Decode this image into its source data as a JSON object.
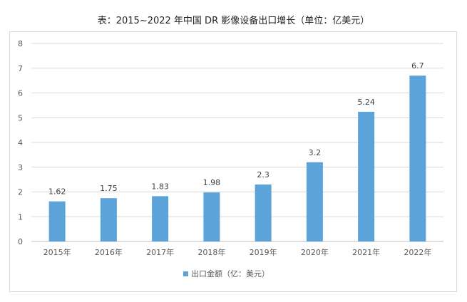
{
  "chart_data": {
    "type": "bar",
    "title": "表：2015~2022 年中国 DR 影像设备出口增长（单位：亿美元）",
    "categories": [
      "2015年",
      "2016年",
      "2017年",
      "2018年",
      "2019年",
      "2020年",
      "2021年",
      "2022年"
    ],
    "series": [
      {
        "name": "出口金额（亿：美元）",
        "values": [
          1.62,
          1.75,
          1.83,
          1.98,
          2.3,
          3.2,
          5.24,
          6.7
        ],
        "labels": [
          "1.62",
          "1.75",
          "1.83",
          "1.98",
          "2.3",
          "3.2",
          "5.24",
          "6.7"
        ],
        "color": "#5ba3d9"
      }
    ],
    "ylim": [
      0,
      8
    ],
    "yticks": [
      "0",
      "1",
      "2",
      "3",
      "4",
      "5",
      "6",
      "7",
      "8"
    ],
    "grid": true,
    "legend": "bottom"
  }
}
